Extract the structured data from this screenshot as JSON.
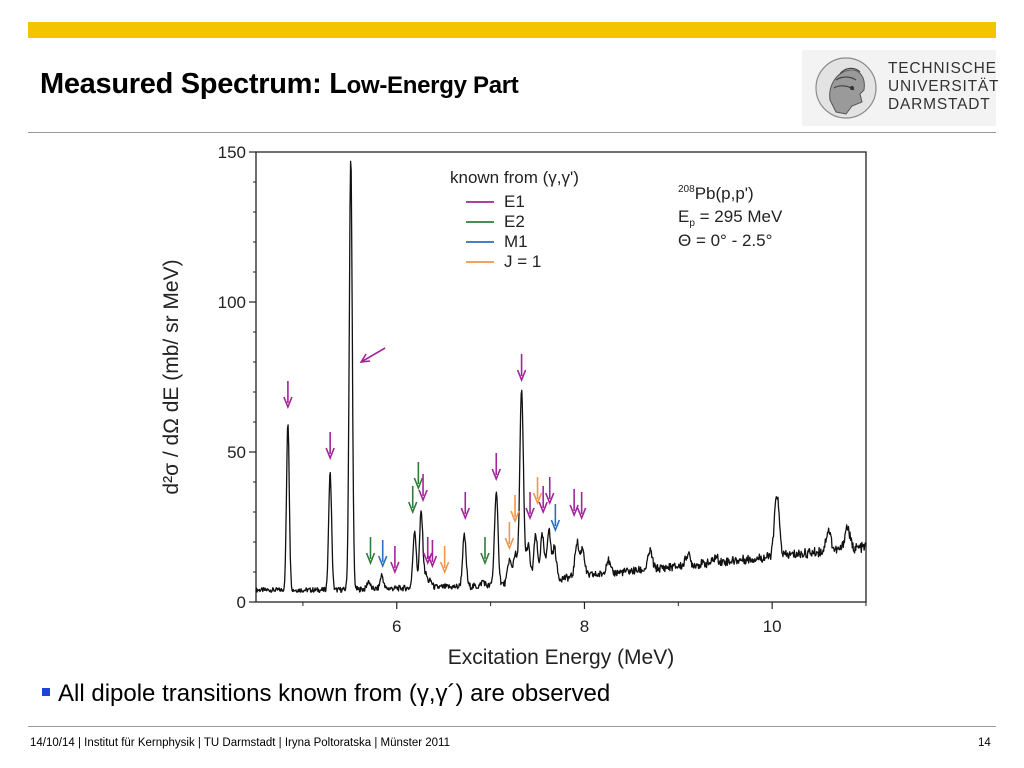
{
  "slide": {
    "title_part1": "Measured Spectrum: L",
    "title_part2": "ow-Energy Part",
    "logo_lines": [
      "TECHNISCHE",
      "UNIVERSITÄT",
      "DARMSTADT"
    ],
    "bullet": "All dipole transitions known from (γ,γ´) are observed",
    "footer": "14/10/14 | Institut für Kernphysik | TU Darmstadt | Iryna Poltoratska | Münster 2011",
    "page_number": "14"
  },
  "colors": {
    "accent_bar": "#f2c500",
    "bullet": "#1a46d6",
    "E1": "#a3239b",
    "E2": "#2f7d3b",
    "M1": "#2a6fc0",
    "J1": "#f0954a"
  },
  "chart_data": {
    "type": "line",
    "xlabel": "Excitation Energy (MeV)",
    "ylabel": "d²σ / dΩ dE (mb/ sr MeV)",
    "xlim": [
      4.5,
      11.0
    ],
    "ylim": [
      0,
      150
    ],
    "x_ticks": [
      6,
      8,
      10
    ],
    "y_ticks": [
      0,
      50,
      100,
      150
    ],
    "grid": false,
    "legend": {
      "title": "known from (γ,γ')",
      "position": "top-right",
      "entries": [
        {
          "label": "E1",
          "color": "#a3239b"
        },
        {
          "label": "E2",
          "color": "#2f7d3b"
        },
        {
          "label": "M1",
          "color": "#2a6fc0"
        },
        {
          "label": "J = 1",
          "color": "#f0954a"
        }
      ]
    },
    "annotation": {
      "reaction": "Pb(p,p')",
      "mass_number": "208",
      "beam_energy": "E",
      "beam_subscript": "p",
      "beam_value": " = 295 MeV",
      "angle": "Θ = 0° - 2.5°"
    },
    "peaks": [
      {
        "x": 4.84,
        "y": 60
      },
      {
        "x": 5.29,
        "y": 43
      },
      {
        "x": 5.51,
        "y": 148
      },
      {
        "x": 5.7,
        "y": 7
      },
      {
        "x": 5.84,
        "y": 9
      },
      {
        "x": 6.19,
        "y": 24
      },
      {
        "x": 6.26,
        "y": 30
      },
      {
        "x": 6.31,
        "y": 9
      },
      {
        "x": 6.36,
        "y": 7
      },
      {
        "x": 6.5,
        "y": 5
      },
      {
        "x": 6.72,
        "y": 22
      },
      {
        "x": 6.92,
        "y": 7
      },
      {
        "x": 7.06,
        "y": 36
      },
      {
        "x": 7.2,
        "y": 14
      },
      {
        "x": 7.26,
        "y": 16
      },
      {
        "x": 7.33,
        "y": 70
      },
      {
        "x": 7.4,
        "y": 19
      },
      {
        "x": 7.48,
        "y": 22
      },
      {
        "x": 7.55,
        "y": 22
      },
      {
        "x": 7.62,
        "y": 24
      },
      {
        "x": 7.68,
        "y": 18
      },
      {
        "x": 7.92,
        "y": 20
      },
      {
        "x": 7.98,
        "y": 18
      },
      {
        "x": 8.25,
        "y": 14
      },
      {
        "x": 8.7,
        "y": 17
      },
      {
        "x": 9.1,
        "y": 16
      },
      {
        "x": 9.4,
        "y": 15
      },
      {
        "x": 10.05,
        "y": 36
      },
      {
        "x": 10.6,
        "y": 24
      },
      {
        "x": 10.8,
        "y": 25
      }
    ],
    "transition_markers": [
      {
        "x": 4.84,
        "y": 65,
        "type": "E1"
      },
      {
        "x": 5.29,
        "y": 48,
        "type": "E1"
      },
      {
        "x": 5.72,
        "y": 13,
        "type": "E2"
      },
      {
        "x": 5.85,
        "y": 12,
        "type": "M1"
      },
      {
        "x": 5.98,
        "y": 10,
        "type": "E1"
      },
      {
        "x": 6.17,
        "y": 30,
        "type": "E2"
      },
      {
        "x": 6.23,
        "y": 38,
        "type": "E2"
      },
      {
        "x": 6.28,
        "y": 34,
        "type": "E1"
      },
      {
        "x": 6.33,
        "y": 13,
        "type": "E1"
      },
      {
        "x": 6.38,
        "y": 12,
        "type": "E1"
      },
      {
        "x": 6.51,
        "y": 10,
        "type": "J1"
      },
      {
        "x": 6.73,
        "y": 28,
        "type": "E1"
      },
      {
        "x": 6.94,
        "y": 13,
        "type": "E2"
      },
      {
        "x": 7.06,
        "y": 41,
        "type": "E1"
      },
      {
        "x": 7.2,
        "y": 18,
        "type": "J1"
      },
      {
        "x": 7.26,
        "y": 27,
        "type": "J1"
      },
      {
        "x": 7.33,
        "y": 74,
        "type": "E1"
      },
      {
        "x": 7.42,
        "y": 28,
        "type": "E1"
      },
      {
        "x": 7.5,
        "y": 33,
        "type": "J1"
      },
      {
        "x": 7.56,
        "y": 30,
        "type": "E1"
      },
      {
        "x": 7.63,
        "y": 33,
        "type": "E1"
      },
      {
        "x": 7.69,
        "y": 24,
        "type": "M1"
      },
      {
        "x": 7.89,
        "y": 29,
        "type": "E1"
      },
      {
        "x": 7.97,
        "y": 28,
        "type": "E1"
      }
    ],
    "diagonal_marker": {
      "x": 5.62,
      "y": 80,
      "type": "E1"
    }
  }
}
